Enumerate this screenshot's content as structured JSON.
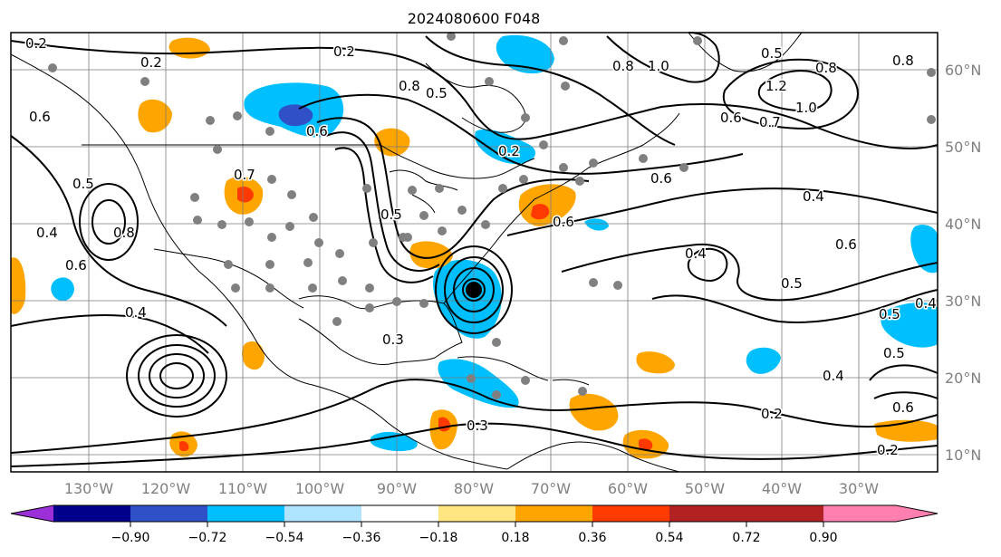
{
  "title": "2024080600 F048",
  "lon_labels": [
    "130°W",
    "120°W",
    "110°W",
    "100°W",
    "90°W",
    "80°W",
    "70°W",
    "60°W",
    "50°W",
    "40°W",
    "30°W"
  ],
  "lat_labels": [
    "60°N",
    "50°N",
    "40°N",
    "30°N",
    "20°N",
    "10°N"
  ],
  "colorbar": {
    "ticks": [
      "−0.90",
      "−0.72",
      "−0.54",
      "−0.36",
      "−0.18",
      "0.18",
      "0.36",
      "0.54",
      "0.72",
      "0.90"
    ],
    "colors": [
      "#9b30d9",
      "#00008b",
      "#3050c8",
      "#00bfff",
      "#aee4ff",
      "#ffffff",
      "#ffe680",
      "#ffa500",
      "#ff3a00",
      "#b22222",
      "#ff80b0"
    ]
  },
  "fill_colors": {
    "light_blue": "#00bfff",
    "mid_blue": "#3050c8",
    "orange": "#ffa500",
    "red": "#ff3a00"
  },
  "contour_labels": [
    "0.2",
    "0.2",
    "0.2",
    "0.6",
    "0.5",
    "0.4",
    "0.8",
    "0.6",
    "0.4",
    "0.7",
    "0.8",
    "0.6",
    "0.5",
    "0.2",
    "0.8",
    "1.0",
    "0.8",
    "0.5",
    "0.8",
    "1.2",
    "1.0",
    "0.7",
    "0.6",
    "0.6",
    "0.4",
    "0.6",
    "0.4",
    "0.6",
    "0.5",
    "0.5",
    "0.5",
    "0.3",
    "0.4",
    "0.2",
    "0.2",
    "0.3",
    "0.5",
    "0.4",
    "0.6"
  ]
}
